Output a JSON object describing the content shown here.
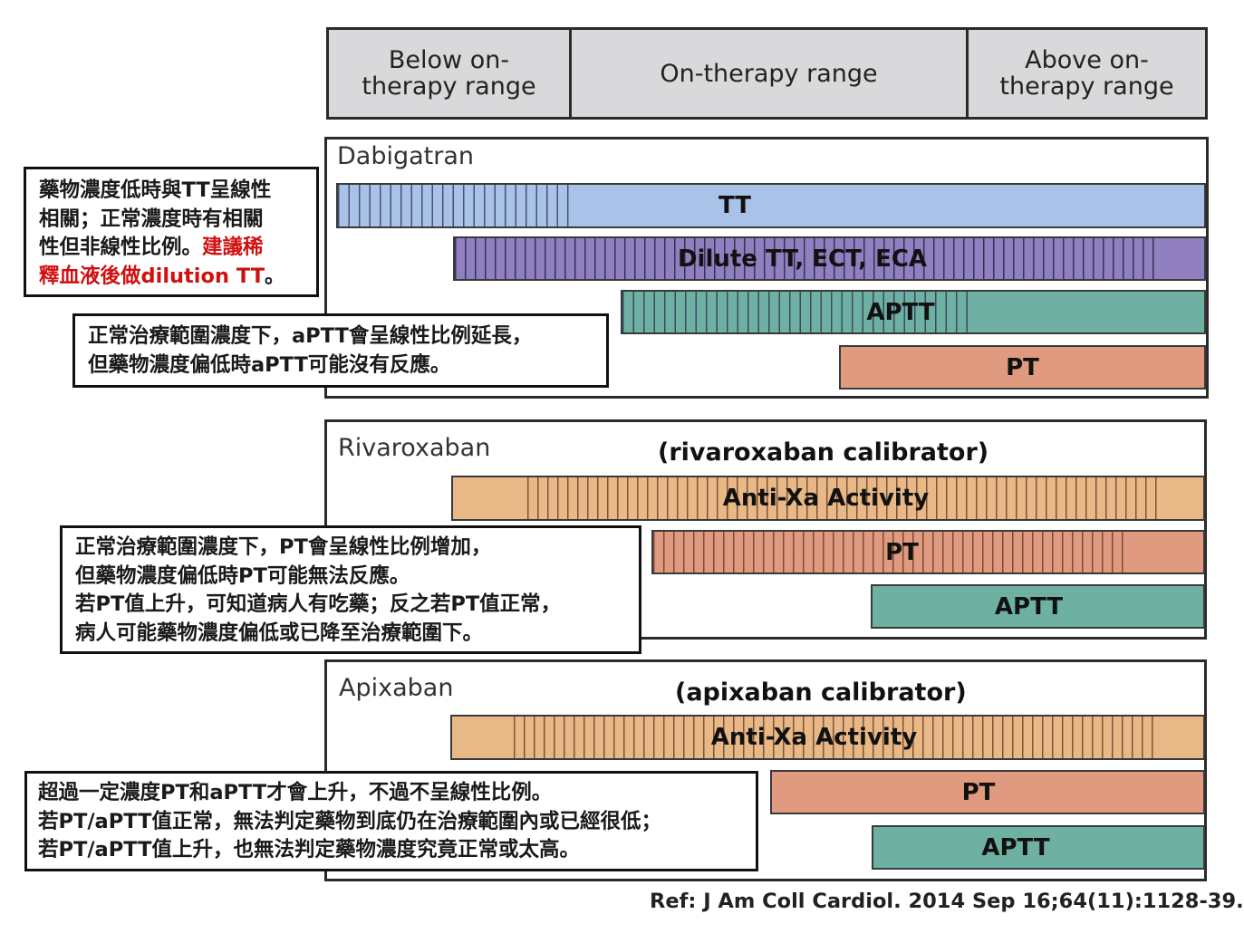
{
  "header": {
    "below": "Below on-\ntherapy range",
    "on": "On-therapy range",
    "above": "Above on-\ntherapy range"
  },
  "panels": {
    "dabigatran": {
      "name": "Dabigatran",
      "bars": {
        "tt": "TT",
        "dilute": "Dilute TT, ECT, ECA",
        "aptt": "APTT",
        "pt": "PT"
      }
    },
    "rivaroxaban": {
      "name": "Rivaroxaban",
      "calibrator": "(rivaroxaban calibrator)",
      "bars": {
        "antixa": "Anti-Xa Activity",
        "pt": "PT",
        "aptt": "APTT"
      }
    },
    "apixaban": {
      "name": "Apixaban",
      "calibrator": "(apixaban calibrator)",
      "bars": {
        "antixa": "Anti-Xa Activity",
        "pt": "PT",
        "aptt": "APTT"
      }
    }
  },
  "notes": {
    "dabigatran_tt": {
      "line1": "藥物濃度低時與TT呈線性",
      "line2": "相關；正常濃度時有相關",
      "line3a": "性但非線性比例。",
      "line3b": "建議稀",
      "line4a": "釋血液後做dilution TT",
      "line4b": "。"
    },
    "dabigatran_aptt": {
      "line1": "正常治療範圍濃度下，aPTT會呈線性比例延長，",
      "line2": "但藥物濃度偏低時aPTT可能沒有反應。"
    },
    "rivaroxaban": {
      "line1": "正常治療範圍濃度下，PT會呈線性比例增加，",
      "line2": "但藥物濃度偏低時PT可能無法反應。",
      "line3": "若PT值上升，可知道病人有吃藥；反之若PT值正常，",
      "line4": "病人可能藥物濃度偏低或已降至治療範圍下。"
    },
    "apixaban": {
      "line1": "超過一定濃度PT和aPTT才會上升，不過不呈線性比例。",
      "line2": "若PT/aPTT值正常，無法判定藥物到底仍在治療範圍內或已經很低；",
      "line3": "若PT/aPTT值上升，也無法判定藥物濃度究竟正常或太高。"
    }
  },
  "reference": "Ref: J Am Coll Cardiol. 2014 Sep 16;64(11):1128-39.",
  "colors": {
    "tt": "#a9c3e8",
    "dilute": "#9080c0",
    "aptt": "#6eb1a3",
    "pt": "#df9a80",
    "antixa": "#e9b887",
    "header": "#d9d9dc",
    "highlight": "#d01010"
  }
}
